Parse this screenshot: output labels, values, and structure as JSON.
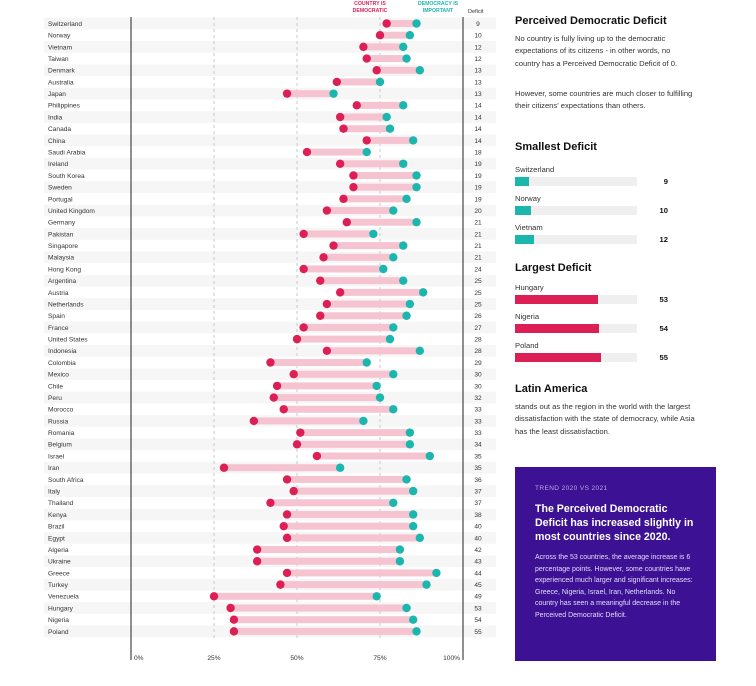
{
  "chart_data": {
    "type": "dumbbell",
    "legend": [
      {
        "label": "COUNTRY IS DEMOCRATIC",
        "color": "#dc1f55"
      },
      {
        "label": "DEMOCRACY IS IMPORTANT",
        "color": "#1bb6ad"
      }
    ],
    "deficit_header": "Deficit",
    "x_ticks": [
      "0%",
      "25%",
      "50%",
      "75%",
      "100%"
    ],
    "x_tick_values": [
      0,
      25,
      50,
      75,
      100
    ],
    "xlim": [
      0,
      100
    ],
    "gridlines": [
      25,
      50,
      75
    ],
    "rows": [
      {
        "country": "Switzerland",
        "democratic": 77,
        "important": 86,
        "deficit": 9
      },
      {
        "country": "Norway",
        "democratic": 75,
        "important": 84,
        "deficit": 10
      },
      {
        "country": "Vietnam",
        "democratic": 70,
        "important": 82,
        "deficit": 12
      },
      {
        "country": "Taiwan",
        "democratic": 71,
        "important": 83,
        "deficit": 12
      },
      {
        "country": "Denmark",
        "democratic": 74,
        "important": 87,
        "deficit": 13
      },
      {
        "country": "Australia",
        "democratic": 62,
        "important": 75,
        "deficit": 13
      },
      {
        "country": "Japan",
        "democratic": 47,
        "important": 61,
        "deficit": 13
      },
      {
        "country": "Philippines",
        "democratic": 68,
        "important": 82,
        "deficit": 14
      },
      {
        "country": "India",
        "democratic": 63,
        "important": 77,
        "deficit": 14
      },
      {
        "country": "Canada",
        "democratic": 64,
        "important": 78,
        "deficit": 14
      },
      {
        "country": "China",
        "democratic": 71,
        "important": 85,
        "deficit": 14
      },
      {
        "country": "Saudi Arabia",
        "democratic": 53,
        "important": 71,
        "deficit": 18
      },
      {
        "country": "Ireland",
        "democratic": 63,
        "important": 82,
        "deficit": 19
      },
      {
        "country": "South Korea",
        "democratic": 67,
        "important": 86,
        "deficit": 19
      },
      {
        "country": "Sweden",
        "democratic": 67,
        "important": 86,
        "deficit": 19
      },
      {
        "country": "Portugal",
        "democratic": 64,
        "important": 83,
        "deficit": 19
      },
      {
        "country": "United Kingdom",
        "democratic": 59,
        "important": 79,
        "deficit": 20
      },
      {
        "country": "Germany",
        "democratic": 65,
        "important": 86,
        "deficit": 21
      },
      {
        "country": "Pakistan",
        "democratic": 52,
        "important": 73,
        "deficit": 21
      },
      {
        "country": "Singapore",
        "democratic": 61,
        "important": 82,
        "deficit": 21
      },
      {
        "country": "Malaysia",
        "democratic": 58,
        "important": 79,
        "deficit": 21
      },
      {
        "country": "Hong Kong",
        "democratic": 52,
        "important": 76,
        "deficit": 24
      },
      {
        "country": "Argentina",
        "democratic": 57,
        "important": 82,
        "deficit": 25
      },
      {
        "country": "Austria",
        "democratic": 63,
        "important": 88,
        "deficit": 25
      },
      {
        "country": "Netherlands",
        "democratic": 59,
        "important": 84,
        "deficit": 25
      },
      {
        "country": "Spain",
        "democratic": 57,
        "important": 83,
        "deficit": 26
      },
      {
        "country": "France",
        "democratic": 52,
        "important": 79,
        "deficit": 27
      },
      {
        "country": "United States",
        "democratic": 50,
        "important": 78,
        "deficit": 28
      },
      {
        "country": "Indonesia",
        "democratic": 59,
        "important": 87,
        "deficit": 28
      },
      {
        "country": "Colombia",
        "democratic": 42,
        "important": 71,
        "deficit": 29
      },
      {
        "country": "Mexico",
        "democratic": 49,
        "important": 79,
        "deficit": 30
      },
      {
        "country": "Chile",
        "democratic": 44,
        "important": 74,
        "deficit": 30
      },
      {
        "country": "Peru",
        "democratic": 43,
        "important": 75,
        "deficit": 32
      },
      {
        "country": "Morocco",
        "democratic": 46,
        "important": 79,
        "deficit": 33
      },
      {
        "country": "Russia",
        "democratic": 37,
        "important": 70,
        "deficit": 33
      },
      {
        "country": "Romania",
        "democratic": 51,
        "important": 84,
        "deficit": 33
      },
      {
        "country": "Belgium",
        "democratic": 50,
        "important": 84,
        "deficit": 34
      },
      {
        "country": "Israel",
        "democratic": 56,
        "important": 90,
        "deficit": 35
      },
      {
        "country": "Iran",
        "democratic": 28,
        "important": 63,
        "deficit": 35
      },
      {
        "country": "South Africa",
        "democratic": 47,
        "important": 83,
        "deficit": 36
      },
      {
        "country": "Italy",
        "democratic": 49,
        "important": 85,
        "deficit": 37
      },
      {
        "country": "Thailand",
        "democratic": 42,
        "important": 79,
        "deficit": 37
      },
      {
        "country": "Kenya",
        "democratic": 47,
        "important": 85,
        "deficit": 38
      },
      {
        "country": "Brazil",
        "democratic": 46,
        "important": 85,
        "deficit": 40
      },
      {
        "country": "Egypt",
        "democratic": 47,
        "important": 87,
        "deficit": 40
      },
      {
        "country": "Algeria",
        "democratic": 38,
        "important": 81,
        "deficit": 42
      },
      {
        "country": "Ukraine",
        "democratic": 38,
        "important": 81,
        "deficit": 43
      },
      {
        "country": "Greece",
        "democratic": 47,
        "important": 92,
        "deficit": 44
      },
      {
        "country": "Turkey",
        "democratic": 45,
        "important": 89,
        "deficit": 45
      },
      {
        "country": "Venezuela",
        "democratic": 25,
        "important": 74,
        "deficit": 49
      },
      {
        "country": "Hungary",
        "democratic": 30,
        "important": 83,
        "deficit": 53
      },
      {
        "country": "Nigeria",
        "democratic": 31,
        "important": 85,
        "deficit": 54
      },
      {
        "country": "Poland",
        "democratic": 31,
        "important": 86,
        "deficit": 55
      }
    ]
  },
  "sidebar": {
    "title": "Perceived Democratic Deficit",
    "intro_1": "No country is fully living up to the democratic expectations of its citizens - in other words, no country has a Perceived Democratic Deficit of 0.",
    "intro_2": "However, some countries are much closer to fulfilling their citizens' expectations than others.",
    "smallest_title": "Smallest Deficit",
    "smallest": [
      {
        "name": "Switzerland",
        "value": 9
      },
      {
        "name": "Norway",
        "value": 10
      },
      {
        "name": "Vietnam",
        "value": 12
      }
    ],
    "largest_title": "Largest Deficit",
    "largest": [
      {
        "name": "Hungary",
        "value": 53
      },
      {
        "name": "Nigeria",
        "value": 54
      },
      {
        "name": "Poland",
        "value": 55
      }
    ],
    "bar_scale_max": 78,
    "teal": "#1bb6ad",
    "red": "#dc1f55",
    "latam_title": "Latin America",
    "latam_text": "stands out as the region in the world with the largest dissatisfaction with the state of democracy, while Asia has the least dissatisfaction."
  },
  "trend": {
    "kicker": "TREND 2020 VS 2021",
    "heading": "The Perceived Democratic Deficit has increased slightly in most countries since 2020.",
    "body": "Across the 53 countries, the average increase is 6 percentage points. However, some countries have experienced much larger and significant increases: Greece, Nigeria, Israel, Iran, Netherlands. No country has seen a meaningful decrease in the Perceived Democratic Deficit.",
    "background": "#3d1193"
  }
}
